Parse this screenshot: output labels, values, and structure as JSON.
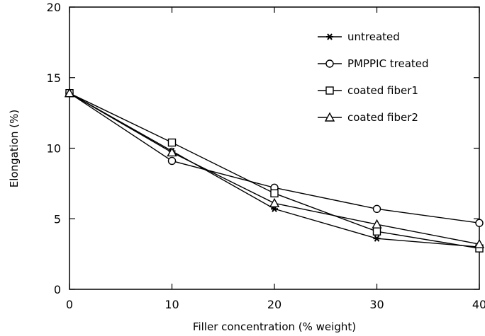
{
  "chart_data": {
    "type": "line",
    "xlabel": "Filler concentration (% weight)",
    "ylabel": "Elongation (%)",
    "xlim": [
      0,
      40
    ],
    "ylim": [
      0,
      20
    ],
    "xticks": [
      0,
      10,
      20,
      30,
      40
    ],
    "yticks": [
      0,
      5,
      10,
      15,
      20
    ],
    "x": [
      0,
      10,
      20,
      30,
      40
    ],
    "grid": false,
    "legend_position": "top-right",
    "series": [
      {
        "name": "untreated",
        "marker": "asterisk",
        "values": [
          13.9,
          9.8,
          5.7,
          3.6,
          3.0
        ]
      },
      {
        "name": "PMPPIC treated",
        "marker": "circle",
        "values": [
          13.9,
          9.1,
          7.2,
          5.7,
          4.7
        ]
      },
      {
        "name": "coated fiber1",
        "marker": "square",
        "values": [
          13.9,
          10.4,
          6.8,
          4.1,
          2.9
        ]
      },
      {
        "name": "coated fiber2",
        "marker": "triangle",
        "values": [
          13.9,
          9.7,
          6.1,
          4.6,
          3.2
        ]
      }
    ]
  }
}
